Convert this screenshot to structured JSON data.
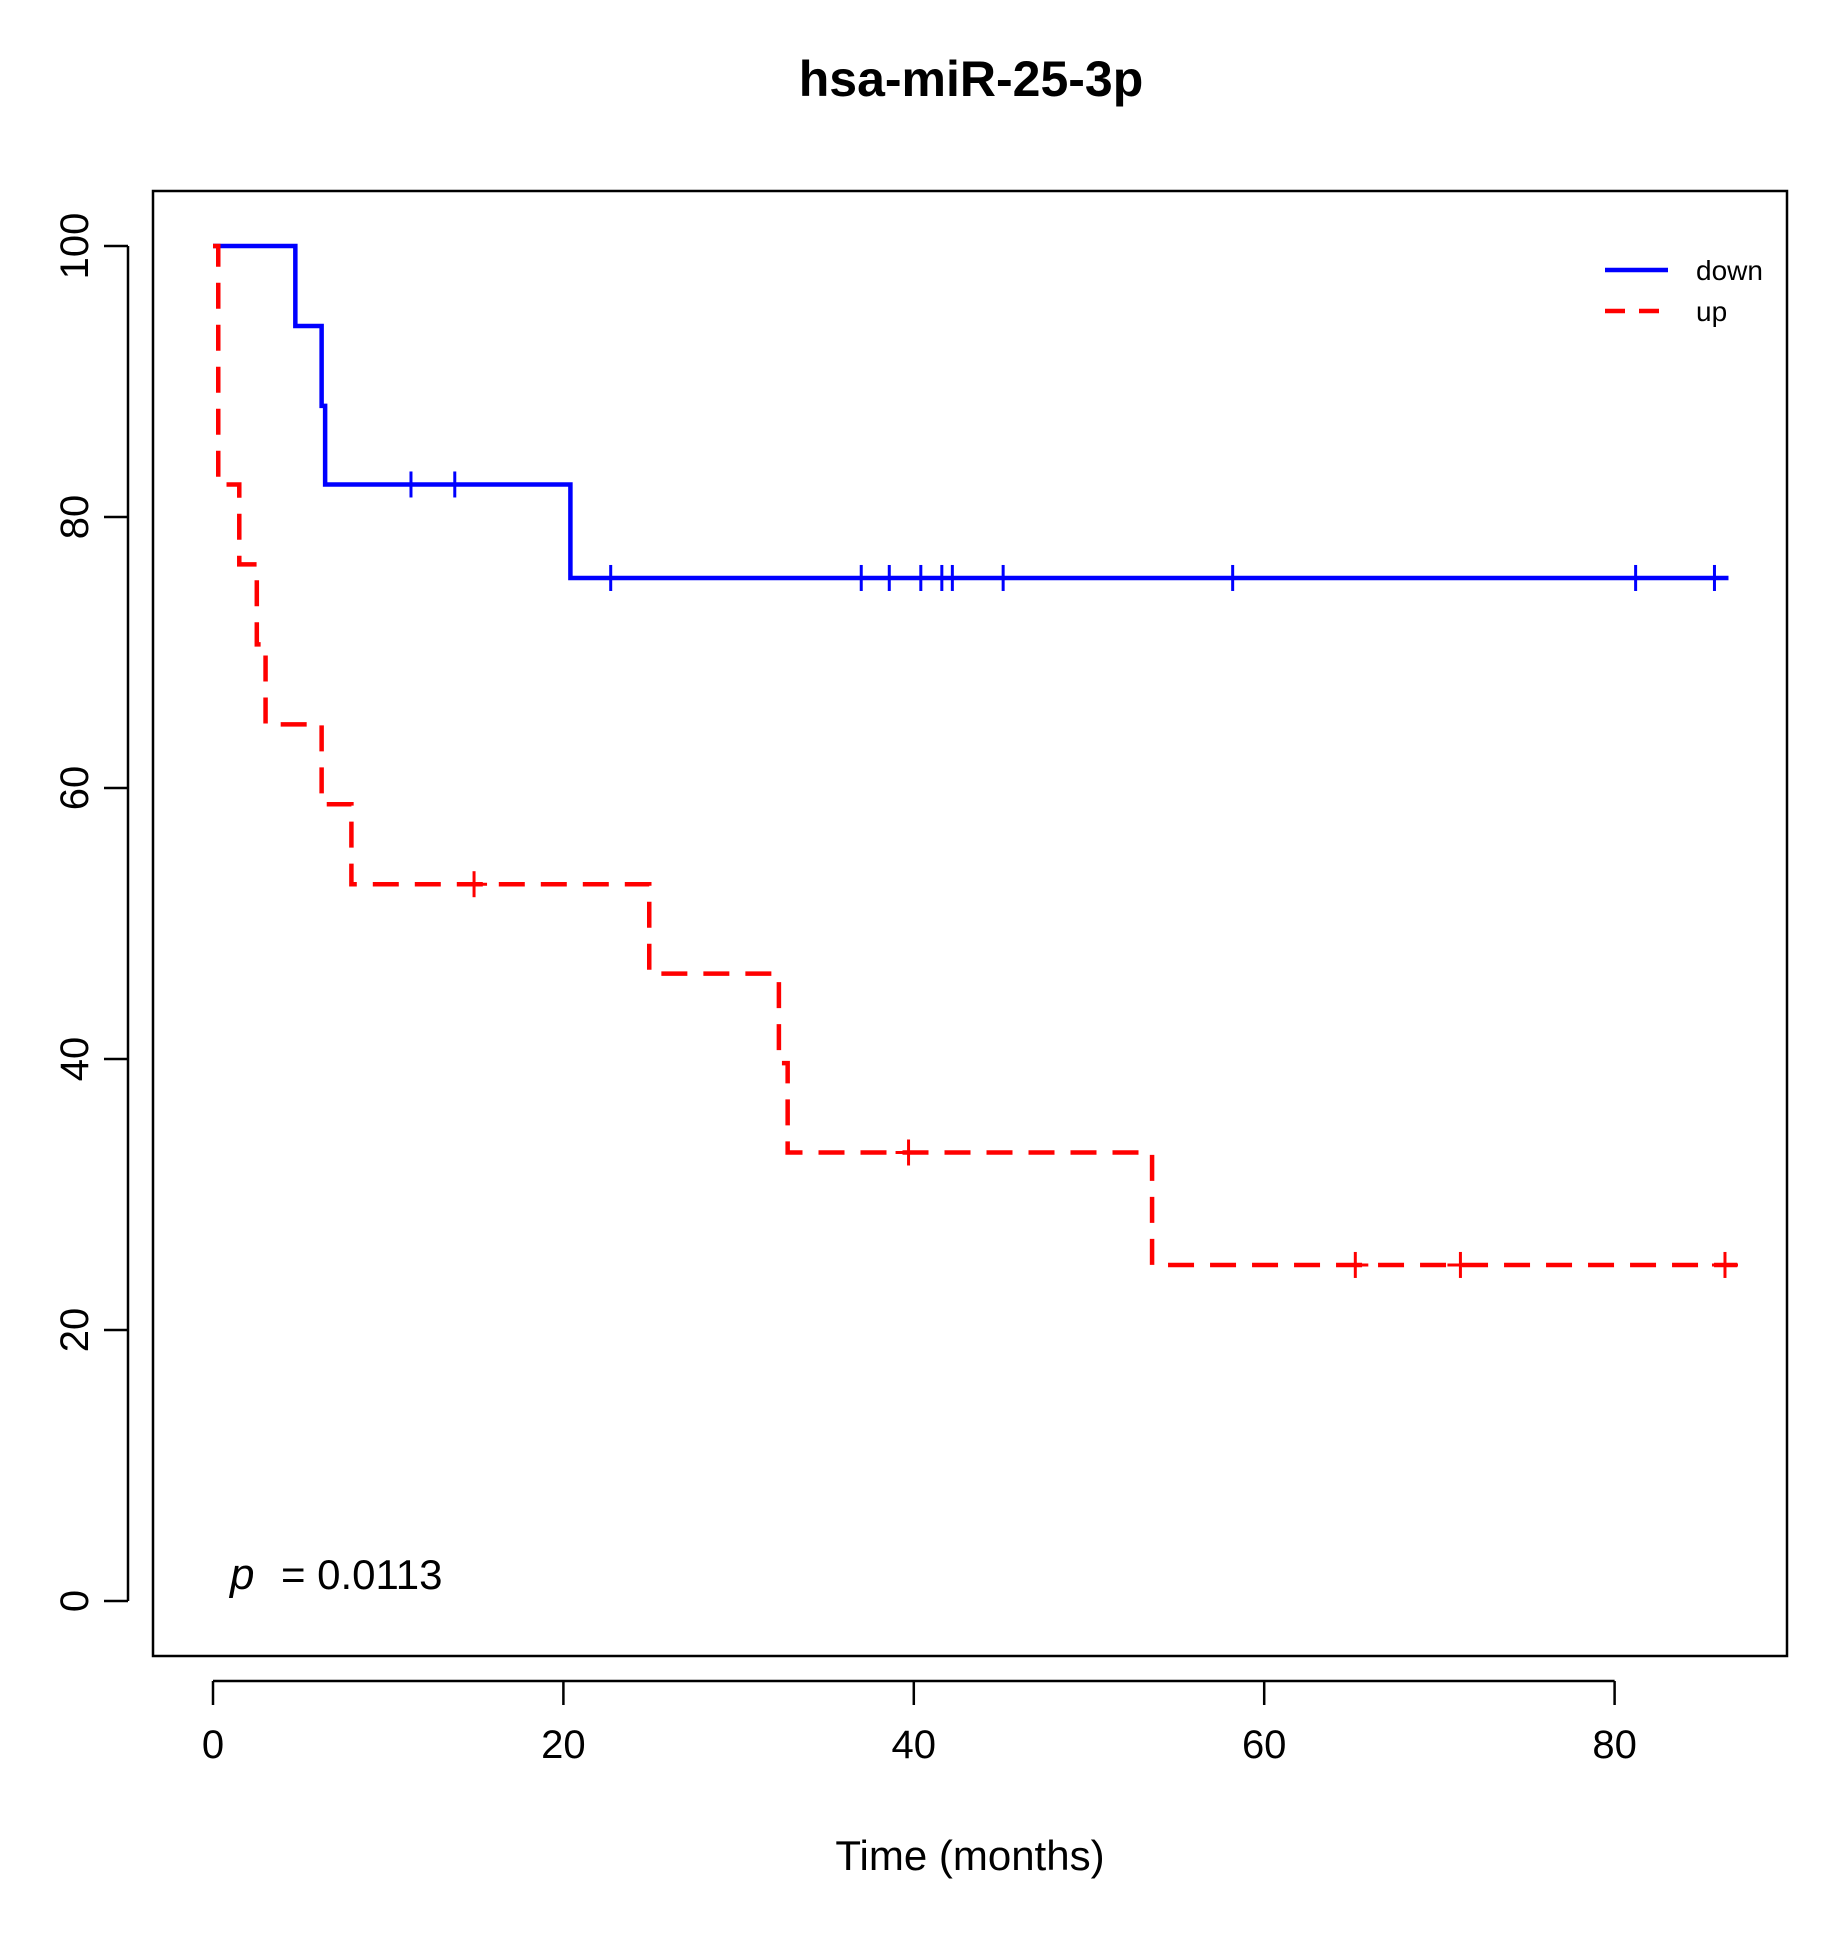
{
  "chart_data": {
    "type": "line",
    "title": "hsa-miR-25-3p",
    "xlabel": "Time (months)",
    "ylabel": "",
    "xlim": [
      0,
      90
    ],
    "ylim": [
      0,
      100
    ],
    "x_ticks": [
      0,
      20,
      40,
      60,
      80
    ],
    "y_ticks": [
      0,
      20,
      40,
      60,
      80,
      100
    ],
    "legend_position": "top-right",
    "annotation": {
      "symbol": "p",
      "text": "= 0.0113"
    },
    "series": [
      {
        "name": "down",
        "color": "#0000ff",
        "style": "solid",
        "steps": [
          [
            0,
            100
          ],
          [
            4.7,
            94.1
          ],
          [
            6.2,
            88.2
          ],
          [
            6.4,
            82.4
          ],
          [
            20.4,
            75.5
          ],
          [
            86.5,
            75.5
          ]
        ],
        "censors": [
          11.3,
          13.8,
          22.7,
          37.0,
          38.6,
          40.4,
          41.6,
          42.2,
          45.1,
          58.2,
          81.2,
          85.7
        ]
      },
      {
        "name": "up",
        "color": "#ff0000",
        "style": "dashed",
        "steps": [
          [
            0,
            100
          ],
          [
            0.3,
            82.4
          ],
          [
            1.5,
            76.5
          ],
          [
            2.5,
            70.6
          ],
          [
            3.0,
            64.7
          ],
          [
            6.2,
            58.8
          ],
          [
            7.9,
            52.9
          ],
          [
            24.9,
            46.3
          ],
          [
            32.3,
            39.7
          ],
          [
            32.8,
            33.1
          ],
          [
            53.6,
            24.8
          ],
          [
            87.0,
            24.8
          ]
        ],
        "censors": [
          14.9,
          39.7,
          65.2,
          71.2,
          86.3
        ]
      }
    ]
  }
}
